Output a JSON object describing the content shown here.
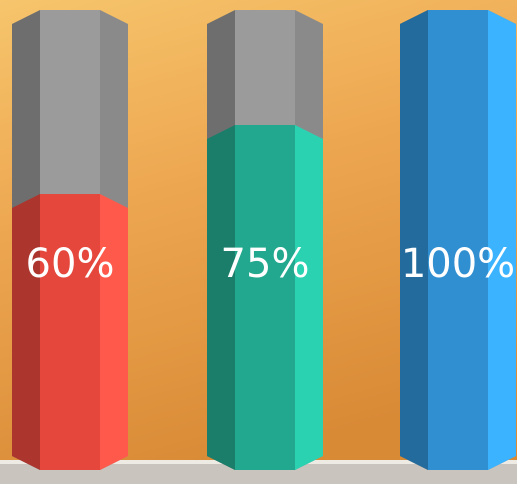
{
  "chart_data": {
    "type": "bar",
    "values": [
      60,
      75,
      100
    ],
    "value_labels": [
      "60%",
      "75%",
      "100%"
    ],
    "colors": [
      "#e5473d",
      "#22a88e",
      "#2f8fd0"
    ]
  }
}
